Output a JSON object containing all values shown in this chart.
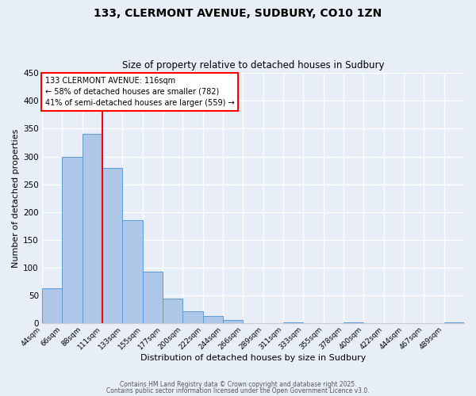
{
  "title": "133, CLERMONT AVENUE, SUDBURY, CO10 1ZN",
  "subtitle": "Size of property relative to detached houses in Sudbury",
  "xlabel": "Distribution of detached houses by size in Sudbury",
  "ylabel": "Number of detached properties",
  "bar_labels": [
    "44sqm",
    "66sqm",
    "88sqm",
    "111sqm",
    "133sqm",
    "155sqm",
    "177sqm",
    "200sqm",
    "222sqm",
    "244sqm",
    "266sqm",
    "289sqm",
    "311sqm",
    "333sqm",
    "355sqm",
    "378sqm",
    "400sqm",
    "422sqm",
    "444sqm",
    "467sqm",
    "489sqm"
  ],
  "bar_values": [
    63,
    300,
    340,
    280,
    185,
    93,
    45,
    22,
    13,
    6,
    0,
    0,
    2,
    0,
    0,
    2,
    0,
    0,
    0,
    0,
    2
  ],
  "bar_color": "#aec6e8",
  "bar_edge_color": "#5b9bd5",
  "vline_x": 3,
  "ylim": [
    0,
    450
  ],
  "yticks": [
    0,
    50,
    100,
    150,
    200,
    250,
    300,
    350,
    400,
    450
  ],
  "annotation_title": "133 CLERMONT AVENUE: 116sqm",
  "annotation_line1": "← 58% of detached houses are smaller (782)",
  "annotation_line2": "41% of semi-detached houses are larger (559) →",
  "background_color": "#e8eef8",
  "grid_color": "#ffffff",
  "footer_line1": "Contains HM Land Registry data © Crown copyright and database right 2025.",
  "footer_line2": "Contains public sector information licensed under the Open Government Licence v3.0."
}
